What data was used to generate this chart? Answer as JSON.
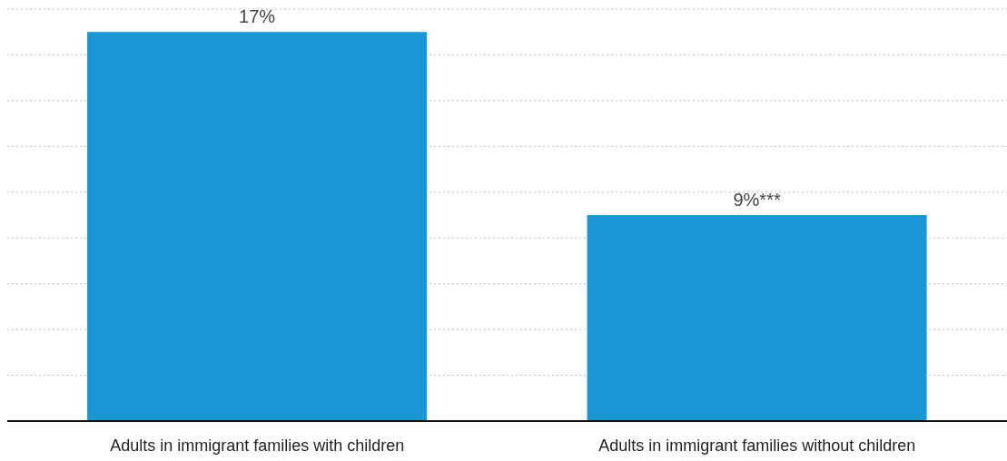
{
  "chart_data": {
    "type": "bar",
    "categories": [
      "Adults in immigrant families with children",
      "Adults in immigrant families without children"
    ],
    "values": [
      17,
      9
    ],
    "color": "#1897d4",
    "value_labels": [
      "17%",
      "9%***"
    ],
    "ylim": [
      0,
      18
    ],
    "yticks": [
      {
        "value": 0,
        "label": null
      },
      {
        "value": 2,
        "label": null
      },
      {
        "value": 4,
        "label": null
      },
      {
        "value": 6,
        "label": null
      },
      {
        "value": 8,
        "label": null
      },
      {
        "value": 10,
        "label": null
      },
      {
        "value": 12,
        "label": null
      },
      {
        "value": 14,
        "label": null
      },
      {
        "value": 16,
        "label": null
      },
      {
        "value": 18,
        "label": null
      }
    ],
    "grid": "y",
    "tick_labels": "x"
  }
}
